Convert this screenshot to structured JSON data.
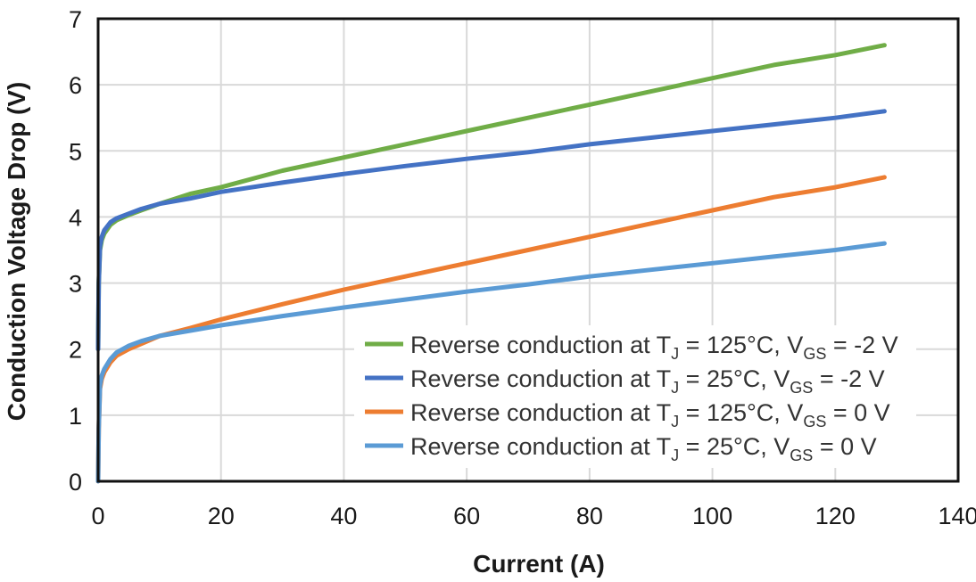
{
  "chart_data": {
    "type": "line",
    "title": "",
    "xlabel": "Current (A)",
    "ylabel": "Conduction Voltage Drop (V)",
    "xlim": [
      0,
      140
    ],
    "ylim": [
      0,
      7
    ],
    "x_ticks": [
      "0",
      "20",
      "40",
      "60",
      "80",
      "100",
      "120",
      "140"
    ],
    "y_ticks": [
      "0",
      "1",
      "2",
      "3",
      "4",
      "5",
      "6",
      "7"
    ],
    "grid": true,
    "legend_position": "bottom-right",
    "series": [
      {
        "name": "Reverse conduction at TJ = 125°C, VGS = -2 V",
        "legend": {
          "pre": "Reverse conduction at T",
          "sub1": "J",
          "mid": " = 125°C, V",
          "sub2": "GS",
          "post": " = -2 V"
        },
        "color": "#70ad47",
        "x": [
          0,
          0.1,
          0.3,
          0.6,
          1,
          2,
          3,
          5,
          7,
          10,
          15,
          20,
          30,
          40,
          50,
          60,
          70,
          80,
          90,
          100,
          110,
          120,
          128
        ],
        "y": [
          2.0,
          3.0,
          3.5,
          3.65,
          3.75,
          3.88,
          3.95,
          4.03,
          4.1,
          4.2,
          4.35,
          4.45,
          4.7,
          4.9,
          5.1,
          5.3,
          5.5,
          5.7,
          5.9,
          6.1,
          6.3,
          6.45,
          6.6
        ]
      },
      {
        "name": "Reverse conduction at TJ = 25°C, VGS = -2 V",
        "legend": {
          "pre": "Reverse conduction at T",
          "sub1": "J",
          "mid": " = 25°C, V",
          "sub2": "GS",
          "post": " = -2 V"
        },
        "color": "#4472c4",
        "x": [
          0,
          0.1,
          0.3,
          0.6,
          1,
          2,
          3,
          5,
          7,
          10,
          15,
          20,
          30,
          40,
          50,
          60,
          70,
          80,
          90,
          100,
          110,
          120,
          128
        ],
        "y": [
          2.0,
          3.0,
          3.55,
          3.7,
          3.8,
          3.92,
          3.98,
          4.05,
          4.12,
          4.2,
          4.28,
          4.38,
          4.52,
          4.65,
          4.77,
          4.88,
          4.98,
          5.1,
          5.2,
          5.3,
          5.4,
          5.5,
          5.6
        ]
      },
      {
        "name": "Reverse conduction at TJ = 125°C, VGS = 0 V",
        "legend": {
          "pre": "Reverse conduction at T",
          "sub1": "J",
          "mid": " = 125°C, V",
          "sub2": "GS",
          "post": " = 0 V"
        },
        "color": "#ed7d31",
        "x": [
          0,
          0.1,
          0.3,
          0.6,
          1,
          2,
          3,
          5,
          7,
          10,
          15,
          20,
          30,
          40,
          50,
          60,
          70,
          80,
          90,
          100,
          110,
          120,
          128
        ],
        "y": [
          0,
          0.8,
          1.4,
          1.55,
          1.65,
          1.8,
          1.9,
          2.0,
          2.08,
          2.2,
          2.32,
          2.45,
          2.68,
          2.9,
          3.1,
          3.3,
          3.5,
          3.7,
          3.9,
          4.1,
          4.3,
          4.45,
          4.6
        ]
      },
      {
        "name": "Reverse conduction at TJ = 25°C, VGS = 0 V",
        "legend": {
          "pre": "Reverse conduction at T",
          "sub1": "J",
          "mid": " = 25°C, V",
          "sub2": "GS",
          "post": " = 0 V"
        },
        "color": "#5b9bd5",
        "x": [
          0,
          0.1,
          0.3,
          0.6,
          1,
          2,
          3,
          5,
          7,
          10,
          15,
          20,
          30,
          40,
          50,
          60,
          70,
          80,
          90,
          100,
          110,
          120,
          128
        ],
        "y": [
          0,
          0.8,
          1.45,
          1.6,
          1.7,
          1.85,
          1.95,
          2.05,
          2.12,
          2.2,
          2.28,
          2.36,
          2.5,
          2.63,
          2.75,
          2.87,
          2.98,
          3.1,
          3.2,
          3.3,
          3.4,
          3.5,
          3.6
        ]
      }
    ]
  }
}
